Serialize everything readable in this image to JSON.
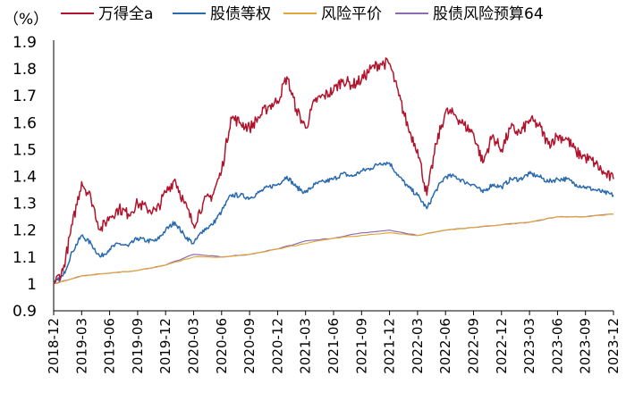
{
  "chart_data": {
    "type": "line",
    "unit_label": "（%）",
    "ylim": [
      0.9,
      1.9
    ],
    "yticks": [
      "0.9",
      "1",
      "1.1",
      "1.2",
      "1.3",
      "1.4",
      "1.5",
      "1.6",
      "1.7",
      "1.8",
      "1.9"
    ],
    "xlim": [
      "2018-12",
      "2023-12"
    ],
    "xticks": [
      "2018-12",
      "2019-03",
      "2019-06",
      "2019-09",
      "2019-12",
      "2020-03",
      "2020-06",
      "2020-09",
      "2020-12",
      "2021-03",
      "2021-06",
      "2021-09",
      "2021-12",
      "2022-03",
      "2022-06",
      "2022-09",
      "2022-12",
      "2023-03",
      "2023-06",
      "2023-09",
      "2023-12"
    ],
    "legend_position": "top",
    "grid": false,
    "series": [
      {
        "name": "万得全a",
        "color": "#B0142C",
        "x": [
          "2018-12",
          "2019-01",
          "2019-02",
          "2019-03",
          "2019-04",
          "2019-05",
          "2019-06",
          "2019-07",
          "2019-08",
          "2019-09",
          "2019-10",
          "2019-11",
          "2019-12",
          "2020-01",
          "2020-02",
          "2020-03",
          "2020-04",
          "2020-05",
          "2020-06",
          "2020-07",
          "2020-08",
          "2020-09",
          "2020-10",
          "2020-11",
          "2020-12",
          "2021-01",
          "2021-02",
          "2021-03",
          "2021-04",
          "2021-05",
          "2021-06",
          "2021-07",
          "2021-08",
          "2021-09",
          "2021-10",
          "2021-11",
          "2021-12",
          "2022-01",
          "2022-02",
          "2022-03",
          "2022-04",
          "2022-05",
          "2022-06",
          "2022-07",
          "2022-08",
          "2022-09",
          "2022-10",
          "2022-11",
          "2022-12",
          "2023-01",
          "2023-02",
          "2023-03",
          "2023-04",
          "2023-05",
          "2023-06",
          "2023-07",
          "2023-08",
          "2023-09",
          "2023-10",
          "2023-11",
          "2023-12"
        ],
        "values": [
          1.0,
          1.05,
          1.22,
          1.38,
          1.32,
          1.2,
          1.25,
          1.28,
          1.26,
          1.3,
          1.28,
          1.27,
          1.34,
          1.39,
          1.3,
          1.22,
          1.3,
          1.33,
          1.42,
          1.62,
          1.6,
          1.58,
          1.62,
          1.66,
          1.68,
          1.77,
          1.65,
          1.58,
          1.68,
          1.7,
          1.72,
          1.76,
          1.74,
          1.76,
          1.8,
          1.82,
          1.82,
          1.7,
          1.58,
          1.5,
          1.33,
          1.52,
          1.64,
          1.63,
          1.59,
          1.56,
          1.45,
          1.55,
          1.5,
          1.58,
          1.56,
          1.61,
          1.59,
          1.52,
          1.55,
          1.54,
          1.49,
          1.47,
          1.45,
          1.41,
          1.39
        ]
      },
      {
        "name": "股债等权",
        "color": "#2A6AAE",
        "x": [
          "2018-12",
          "2019-01",
          "2019-02",
          "2019-03",
          "2019-04",
          "2019-05",
          "2019-06",
          "2019-07",
          "2019-08",
          "2019-09",
          "2019-10",
          "2019-11",
          "2019-12",
          "2020-01",
          "2020-02",
          "2020-03",
          "2020-04",
          "2020-05",
          "2020-06",
          "2020-07",
          "2020-08",
          "2020-09",
          "2020-10",
          "2020-11",
          "2020-12",
          "2021-01",
          "2021-02",
          "2021-03",
          "2021-04",
          "2021-05",
          "2021-06",
          "2021-07",
          "2021-08",
          "2021-09",
          "2021-10",
          "2021-11",
          "2021-12",
          "2022-01",
          "2022-02",
          "2022-03",
          "2022-04",
          "2022-05",
          "2022-06",
          "2022-07",
          "2022-08",
          "2022-09",
          "2022-10",
          "2022-11",
          "2022-12",
          "2023-01",
          "2023-02",
          "2023-03",
          "2023-04",
          "2023-05",
          "2023-06",
          "2023-07",
          "2023-08",
          "2023-09",
          "2023-10",
          "2023-11",
          "2023-12"
        ],
        "values": [
          1.0,
          1.03,
          1.12,
          1.18,
          1.15,
          1.1,
          1.13,
          1.15,
          1.14,
          1.17,
          1.16,
          1.16,
          1.2,
          1.23,
          1.18,
          1.15,
          1.2,
          1.22,
          1.27,
          1.33,
          1.33,
          1.32,
          1.34,
          1.36,
          1.37,
          1.4,
          1.36,
          1.34,
          1.37,
          1.38,
          1.39,
          1.41,
          1.4,
          1.42,
          1.43,
          1.45,
          1.45,
          1.4,
          1.36,
          1.33,
          1.28,
          1.35,
          1.4,
          1.4,
          1.38,
          1.37,
          1.34,
          1.37,
          1.36,
          1.39,
          1.39,
          1.41,
          1.4,
          1.38,
          1.39,
          1.39,
          1.37,
          1.36,
          1.35,
          1.34,
          1.33
        ]
      },
      {
        "name": "风险平价",
        "color": "#E2A63A",
        "x": [
          "2018-12",
          "2019-03",
          "2019-06",
          "2019-09",
          "2019-12",
          "2020-03",
          "2020-06",
          "2020-09",
          "2020-12",
          "2021-03",
          "2021-06",
          "2021-09",
          "2021-12",
          "2022-03",
          "2022-06",
          "2022-09",
          "2022-12",
          "2023-03",
          "2023-06",
          "2023-09",
          "2023-12"
        ],
        "values": [
          1.0,
          1.03,
          1.04,
          1.05,
          1.07,
          1.1,
          1.1,
          1.11,
          1.13,
          1.15,
          1.17,
          1.18,
          1.19,
          1.18,
          1.2,
          1.21,
          1.22,
          1.23,
          1.25,
          1.25,
          1.26
        ]
      },
      {
        "name": "股债风险预算64",
        "color": "#8E6BB4",
        "x": [
          "2018-12",
          "2019-03",
          "2019-06",
          "2019-09",
          "2019-12",
          "2020-03",
          "2020-06",
          "2020-09",
          "2020-12",
          "2021-03",
          "2021-06",
          "2021-09",
          "2021-12",
          "2022-03",
          "2022-06",
          "2022-09",
          "2022-12",
          "2023-03",
          "2023-06",
          "2023-09",
          "2023-12"
        ],
        "values": [
          1.0,
          1.03,
          1.04,
          1.05,
          1.07,
          1.11,
          1.1,
          1.11,
          1.13,
          1.16,
          1.17,
          1.19,
          1.2,
          1.18,
          1.2,
          1.21,
          1.22,
          1.23,
          1.25,
          1.25,
          1.26
        ]
      }
    ]
  }
}
